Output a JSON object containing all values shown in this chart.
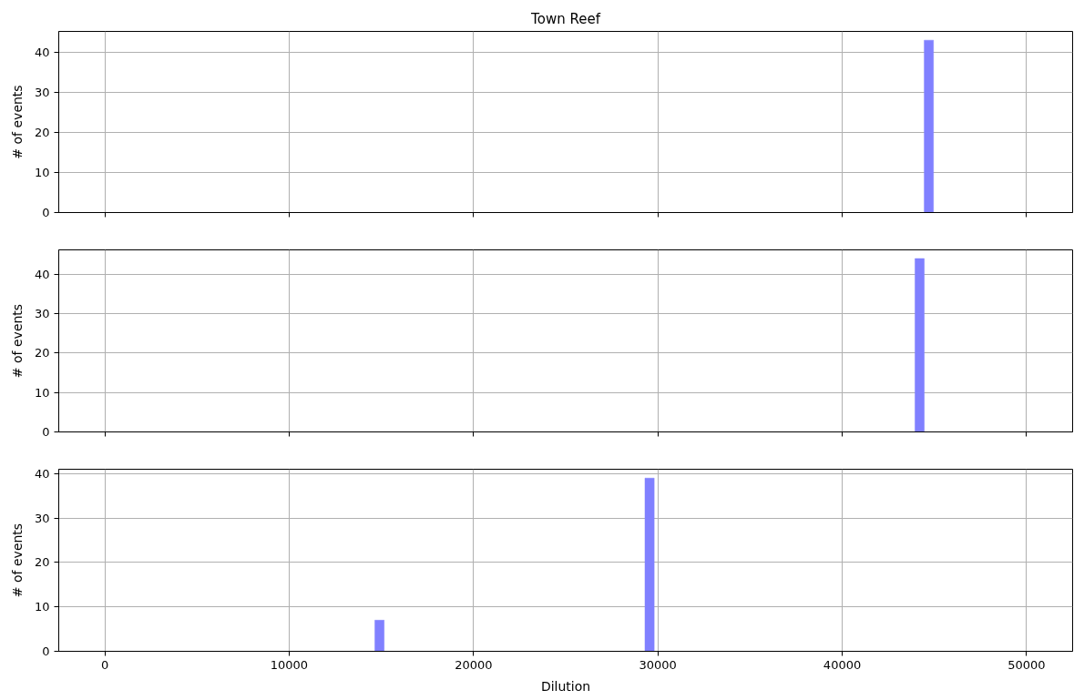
{
  "chart_data": [
    {
      "type": "histogram",
      "title": "Town Reef",
      "ylabel": "# of events",
      "bins": [
        44450,
        44950
      ],
      "values": [
        43
      ],
      "color": "#8080ff",
      "xlim": [
        -2500,
        52500
      ],
      "xticks": [
        0,
        10000,
        20000,
        30000,
        40000,
        50000
      ],
      "ylim": [
        0,
        45.2
      ],
      "yticks": [
        0,
        10,
        20,
        30,
        40
      ],
      "grid": true,
      "tick_labels": "y"
    },
    {
      "type": "histogram",
      "ylabel": "# of events",
      "bins": [
        43950,
        44450
      ],
      "values": [
        44
      ],
      "color": "#8080ff",
      "xlim": [
        -2500,
        52500
      ],
      "xticks": [
        0,
        10000,
        20000,
        30000,
        40000,
        50000
      ],
      "ylim": [
        0,
        46.2
      ],
      "yticks": [
        0,
        10,
        20,
        30,
        40
      ],
      "grid": true,
      "tick_labels": "y"
    },
    {
      "type": "histogram",
      "xlabel": "Dilution",
      "ylabel": "# of events",
      "bins": [
        14650,
        15150,
        29300,
        29800
      ],
      "values": [
        7,
        0,
        39
      ],
      "color": "#8080ff",
      "xlim": [
        -2500,
        52500
      ],
      "xticks": [
        0,
        10000,
        20000,
        30000,
        40000,
        50000
      ],
      "ylim": [
        0,
        41
      ],
      "yticks": [
        0,
        10,
        20,
        30,
        40
      ],
      "grid": true
    }
  ]
}
